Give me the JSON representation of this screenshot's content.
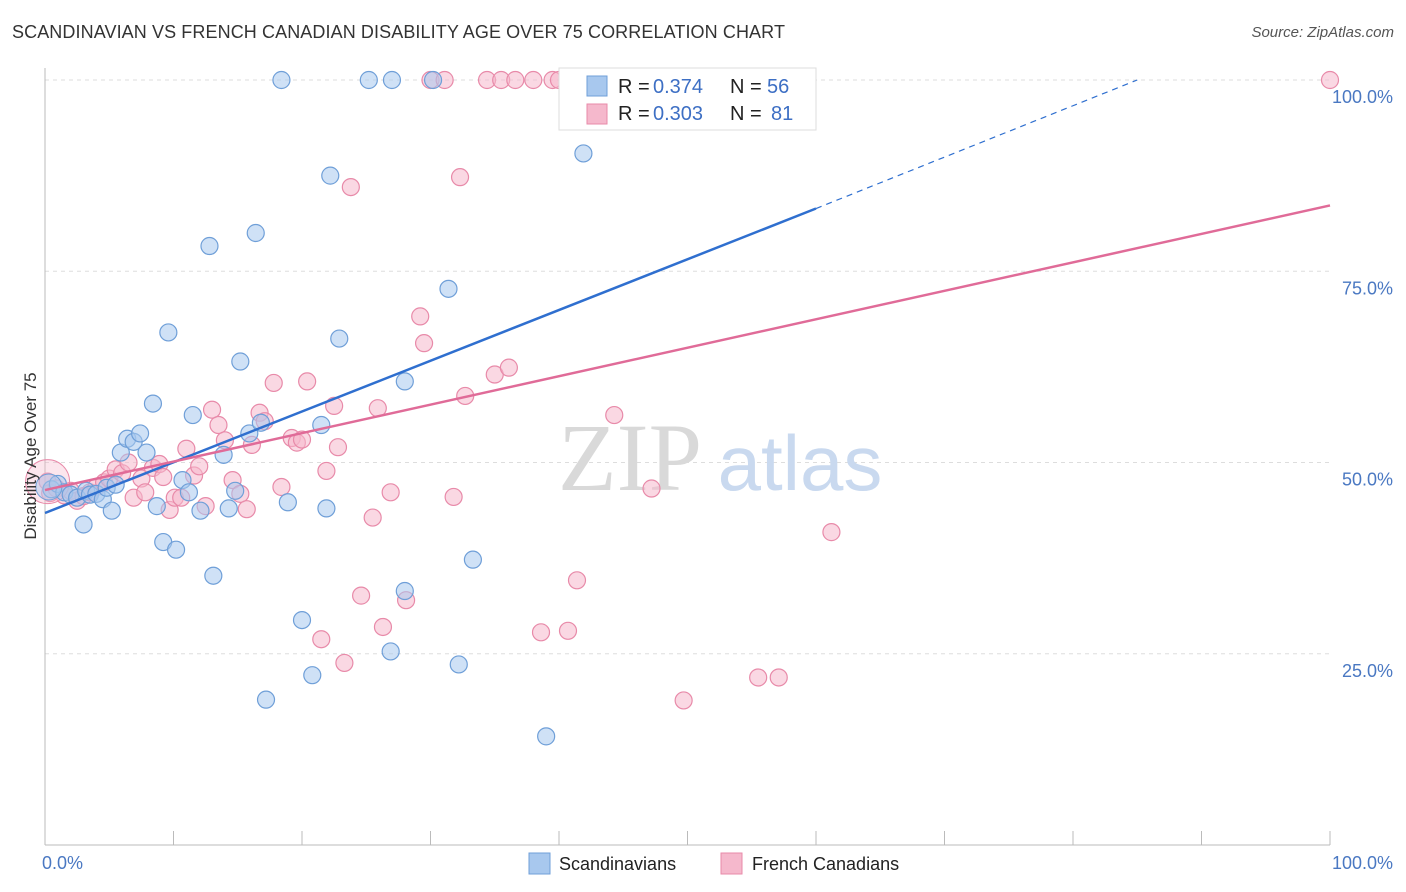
{
  "header": {
    "title": "SCANDINAVIAN VS FRENCH CANADIAN DISABILITY AGE OVER 75 CORRELATION CHART",
    "source": "Source: ZipAtlas.com"
  },
  "watermark": {
    "zip": "ZIP",
    "atlas": "atlas"
  },
  "colors": {
    "blue_fill": "#a8c8ee",
    "blue_stroke": "#6f9fd8",
    "blue_line": "#2f6fcf",
    "pink_fill": "#f5b8cc",
    "pink_stroke": "#e88aa9",
    "pink_line": "#e06b98",
    "tick_text": "#4a78c2",
    "grid": "#dddddd"
  },
  "stats_legend": {
    "r_label": "R =",
    "n_label": "N =",
    "rows": [
      {
        "series": "Scandinavians",
        "r": "0.374",
        "n": "56"
      },
      {
        "series": "French Canadians",
        "r": "0.303",
        "n": "81"
      }
    ]
  },
  "chart_data": {
    "type": "scatter",
    "title": "SCANDINAVIAN VS FRENCH CANADIAN DISABILITY AGE OVER 75 CORRELATION CHART",
    "xlabel": "",
    "ylabel": "Disability Age Over 75",
    "xlim": [
      0,
      100
    ],
    "ylim": [
      0,
      100
    ],
    "x_tick_labels": [
      "0.0%",
      "100.0%"
    ],
    "y_tick_labels": [
      {
        "value": 25,
        "label": "25.0%"
      },
      {
        "value": 50,
        "label": "50.0%"
      },
      {
        "value": 75,
        "label": "75.0%"
      },
      {
        "value": 100,
        "label": "100.0%"
      }
    ],
    "grid": true,
    "legend_position": "bottom-center",
    "series": [
      {
        "name": "Scandinavians",
        "color": "#a8c8ee",
        "points": [
          [
            0.5,
            46.5
          ],
          [
            1.0,
            47.2
          ],
          [
            1.5,
            46.1
          ],
          [
            2.0,
            45.8
          ],
          [
            2.5,
            45.4
          ],
          [
            3.0,
            41.9
          ],
          [
            3.2,
            46.3
          ],
          [
            3.5,
            45.8
          ],
          [
            4.0,
            45.9
          ],
          [
            4.5,
            45.2
          ],
          [
            4.8,
            46.7
          ],
          [
            5.2,
            43.7
          ],
          [
            5.5,
            47.1
          ],
          [
            5.9,
            51.3
          ],
          [
            6.4,
            53.1
          ],
          [
            6.9,
            52.7
          ],
          [
            7.4,
            53.8
          ],
          [
            7.9,
            51.3
          ],
          [
            8.4,
            57.7
          ],
          [
            8.7,
            44.3
          ],
          [
            9.2,
            39.6
          ],
          [
            9.6,
            67.0
          ],
          [
            10.2,
            38.6
          ],
          [
            10.7,
            47.7
          ],
          [
            11.2,
            46.1
          ],
          [
            11.5,
            56.2
          ],
          [
            12.1,
            43.7
          ],
          [
            12.8,
            78.3
          ],
          [
            13.1,
            35.2
          ],
          [
            13.9,
            51.0
          ],
          [
            14.3,
            44.0
          ],
          [
            14.8,
            46.3
          ],
          [
            15.2,
            63.2
          ],
          [
            15.9,
            53.8
          ],
          [
            16.4,
            80.0
          ],
          [
            16.8,
            55.2
          ],
          [
            17.2,
            19.0
          ],
          [
            18.4,
            100
          ],
          [
            18.9,
            44.8
          ],
          [
            20.0,
            29.4
          ],
          [
            20.8,
            22.2
          ],
          [
            21.5,
            54.9
          ],
          [
            21.9,
            44.0
          ],
          [
            22.2,
            87.5
          ],
          [
            22.9,
            66.2
          ],
          [
            25.2,
            100
          ],
          [
            26.9,
            25.3
          ],
          [
            27.0,
            100
          ],
          [
            28.0,
            60.6
          ],
          [
            28.0,
            33.2
          ],
          [
            30.2,
            100
          ],
          [
            31.4,
            72.7
          ],
          [
            32.2,
            23.6
          ],
          [
            33.3,
            37.3
          ],
          [
            39.0,
            14.2
          ],
          [
            41.9,
            90.4
          ]
        ]
      },
      {
        "name": "French Canadians",
        "color": "#f5b8cc",
        "points": [
          [
            0.2,
            47.5
          ],
          [
            0.4,
            46.0
          ],
          [
            0.9,
            46.6
          ],
          [
            1.5,
            45.7
          ],
          [
            2.0,
            46.3
          ],
          [
            2.5,
            45.0
          ],
          [
            3.0,
            45.6
          ],
          [
            3.5,
            46.1
          ],
          [
            4.0,
            46.8
          ],
          [
            4.6,
            47.4
          ],
          [
            5.0,
            47.9
          ],
          [
            5.5,
            49.1
          ],
          [
            6.0,
            48.6
          ],
          [
            6.5,
            50.0
          ],
          [
            6.9,
            45.4
          ],
          [
            7.5,
            47.9
          ],
          [
            7.8,
            46.1
          ],
          [
            8.4,
            49.3
          ],
          [
            8.9,
            49.8
          ],
          [
            9.2,
            48.1
          ],
          [
            9.7,
            43.8
          ],
          [
            10.1,
            45.4
          ],
          [
            10.6,
            45.4
          ],
          [
            11.0,
            51.8
          ],
          [
            11.6,
            48.3
          ],
          [
            12.0,
            49.5
          ],
          [
            12.5,
            44.3
          ],
          [
            13.0,
            56.9
          ],
          [
            13.5,
            54.9
          ],
          [
            14.0,
            52.9
          ],
          [
            14.6,
            47.7
          ],
          [
            15.2,
            45.9
          ],
          [
            15.7,
            43.9
          ],
          [
            16.1,
            52.3
          ],
          [
            16.7,
            56.5
          ],
          [
            17.1,
            55.4
          ],
          [
            17.8,
            60.4
          ],
          [
            18.4,
            46.8
          ],
          [
            19.2,
            53.2
          ],
          [
            19.6,
            52.6
          ],
          [
            20.0,
            53.0
          ],
          [
            20.4,
            60.6
          ],
          [
            21.5,
            26.9
          ],
          [
            21.9,
            48.9
          ],
          [
            22.5,
            57.4
          ],
          [
            22.8,
            52.0
          ],
          [
            23.3,
            23.8
          ],
          [
            23.8,
            86.0
          ],
          [
            24.6,
            32.6
          ],
          [
            25.5,
            42.8
          ],
          [
            25.9,
            57.1
          ],
          [
            26.3,
            28.5
          ],
          [
            26.9,
            46.1
          ],
          [
            28.1,
            32.0
          ],
          [
            29.2,
            69.1
          ],
          [
            29.5,
            65.6
          ],
          [
            30.0,
            100
          ],
          [
            31.1,
            100
          ],
          [
            31.8,
            45.5
          ],
          [
            32.3,
            87.3
          ],
          [
            32.7,
            58.7
          ],
          [
            34.4,
            100
          ],
          [
            35.0,
            61.5
          ],
          [
            35.5,
            100
          ],
          [
            36.1,
            62.4
          ],
          [
            36.6,
            100
          ],
          [
            38.0,
            100
          ],
          [
            38.6,
            27.8
          ],
          [
            39.5,
            100
          ],
          [
            40.0,
            100
          ],
          [
            40.7,
            28.0
          ],
          [
            41.4,
            34.6
          ],
          [
            44.3,
            56.2
          ],
          [
            46.4,
            100
          ],
          [
            47.2,
            46.6
          ],
          [
            49.7,
            18.9
          ],
          [
            55.5,
            21.9
          ],
          [
            57.1,
            21.9
          ],
          [
            58.5,
            100
          ],
          [
            61.2,
            40.9
          ],
          [
            100,
            100
          ]
        ]
      }
    ],
    "trend_lines": [
      {
        "series": "Scandinavians",
        "x": [
          0,
          60
        ],
        "y": [
          43.4,
          83.2
        ],
        "dashed_extension": {
          "x": [
            60,
            85
          ],
          "y": [
            83.2,
            100
          ]
        }
      },
      {
        "series": "French Canadians",
        "x": [
          0,
          100
        ],
        "y": [
          46.4,
          83.6
        ]
      }
    ]
  }
}
